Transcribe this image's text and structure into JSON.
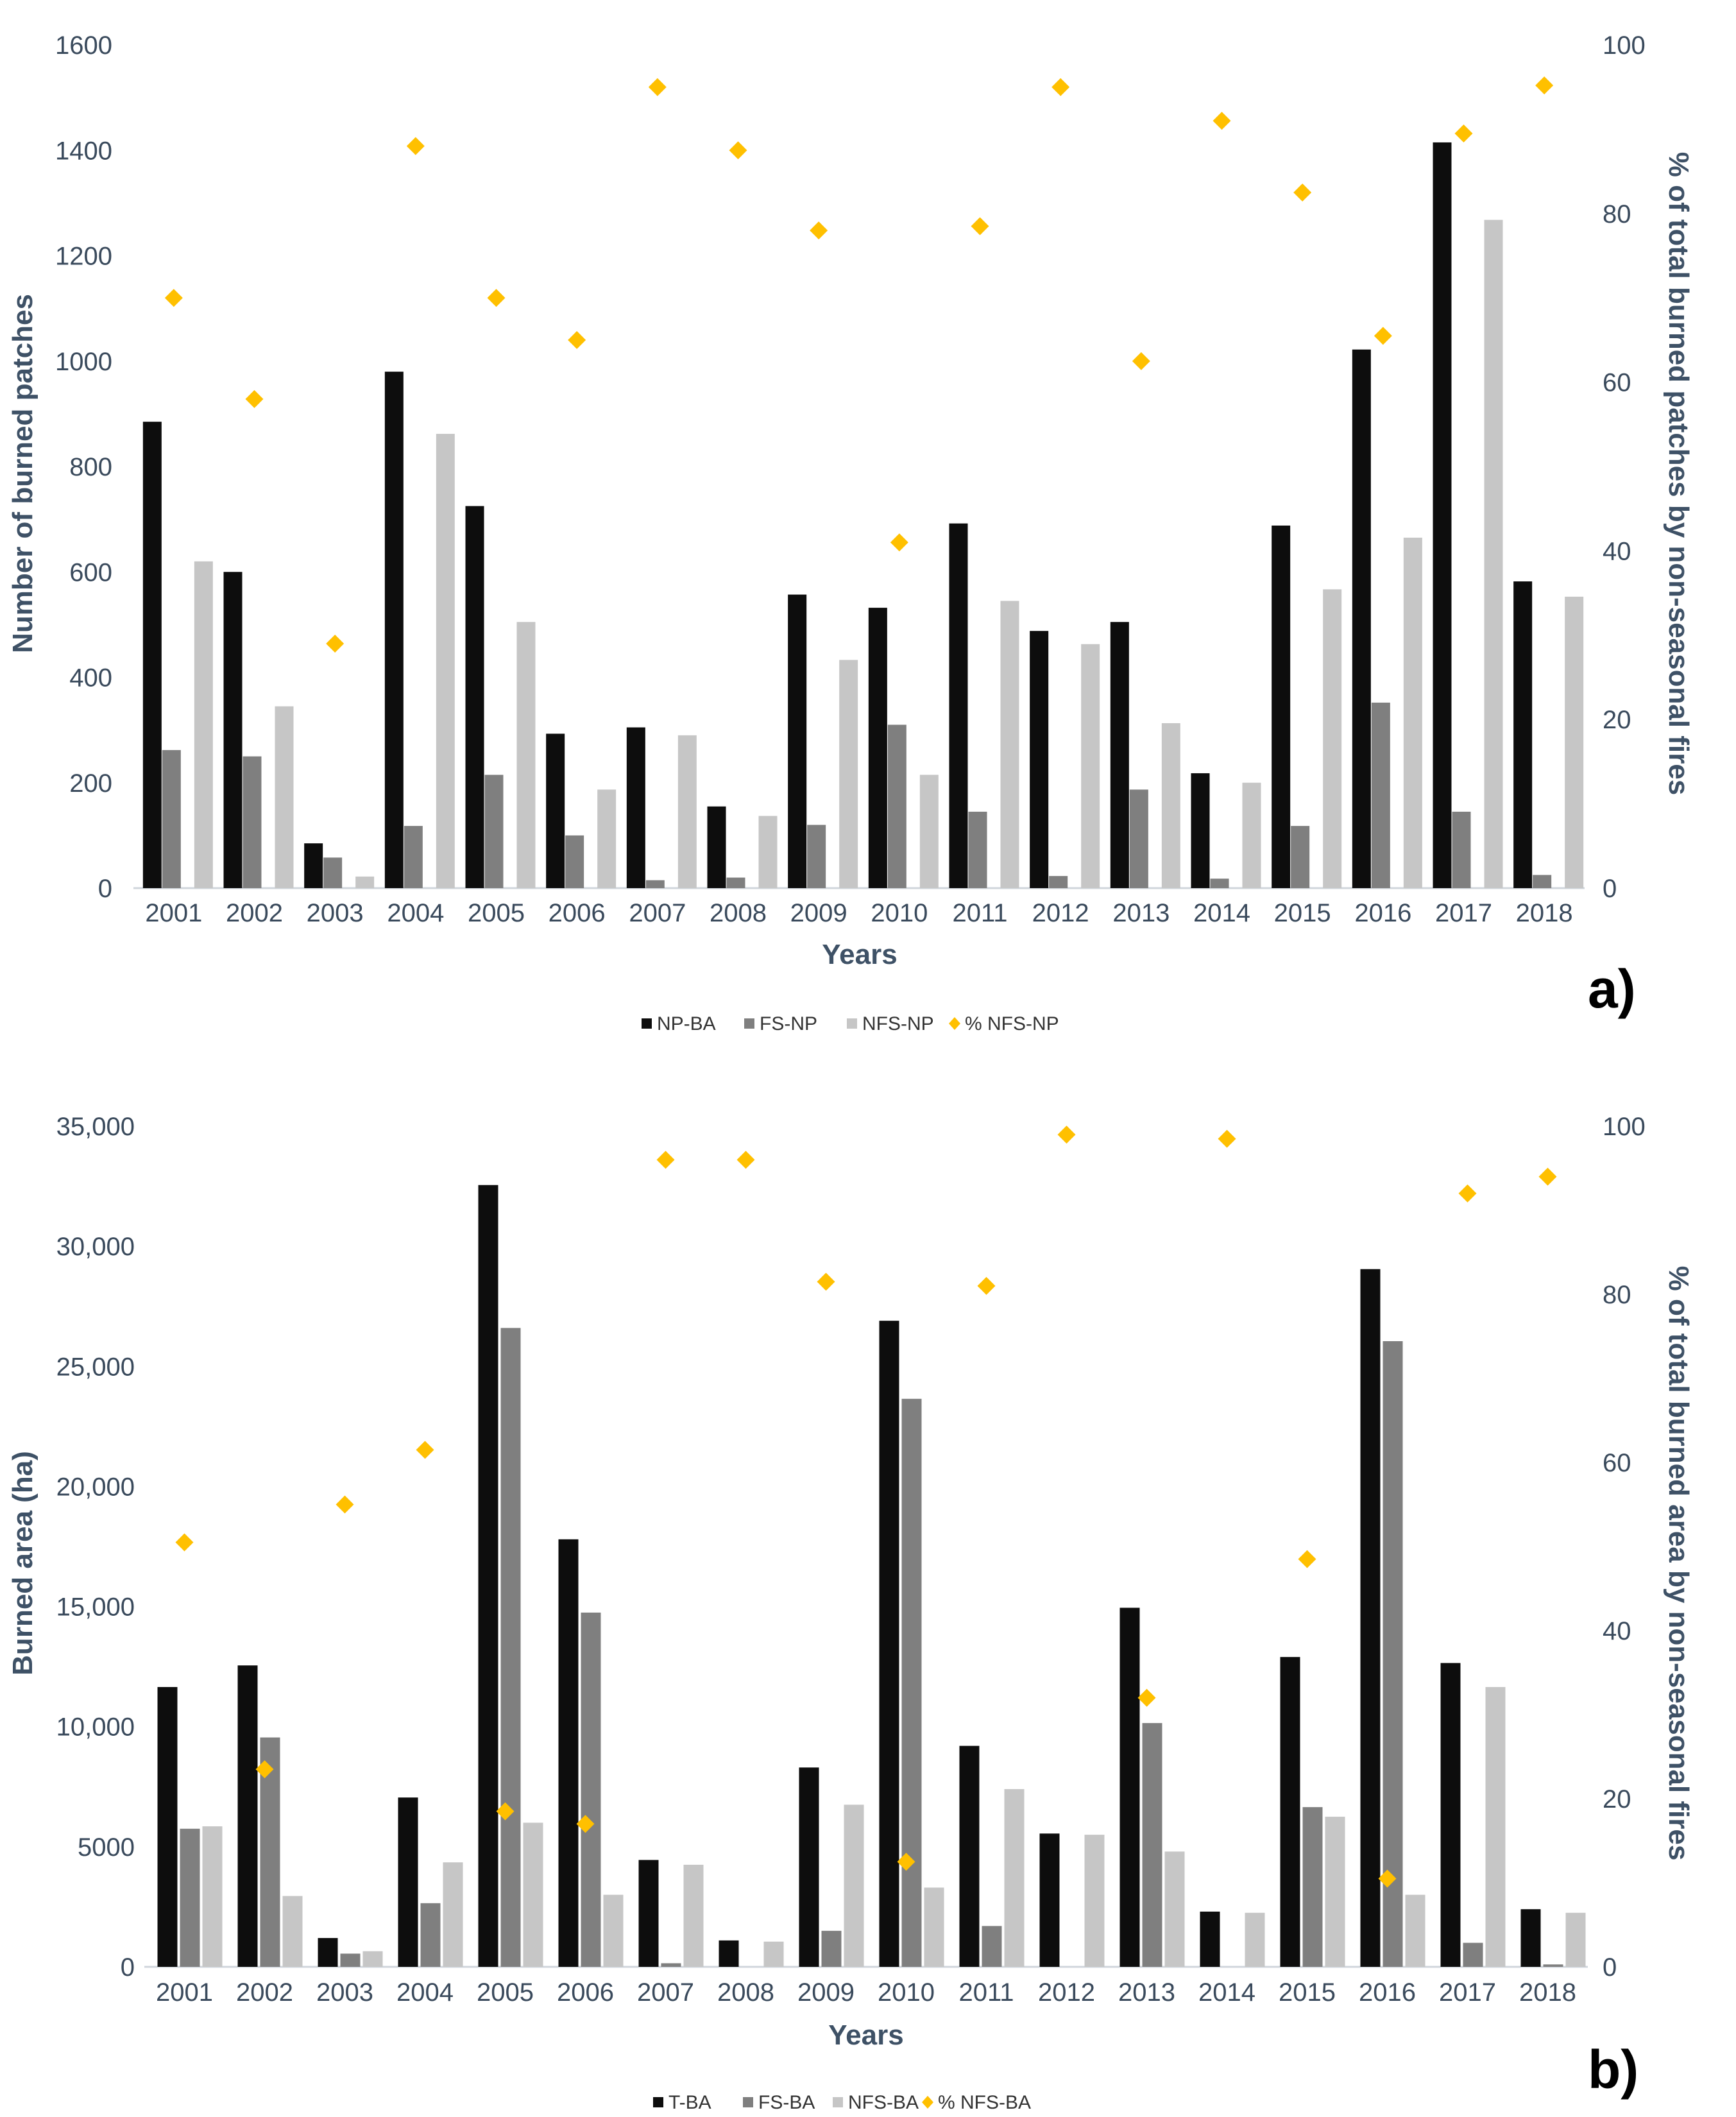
{
  "colors": {
    "black": "#0d0d0d",
    "dark_gray": "#7f7f7f",
    "light_gray": "#c6c6c6",
    "gold": "#ffc000",
    "axis_text": "#3a4a5c"
  },
  "chart_data": [
    {
      "type": "bar",
      "panel_label": "a)",
      "categories": [
        "2001",
        "2002",
        "2003",
        "2004",
        "2005",
        "2006",
        "2007",
        "2008",
        "2009",
        "2010",
        "2011",
        "2012",
        "2013",
        "2014",
        "2015",
        "2016",
        "2017",
        "2018"
      ],
      "series": [
        {
          "name": "NP-BA",
          "color": "#0d0d0d",
          "values": [
            885,
            600,
            85,
            980,
            725,
            293,
            305,
            155,
            557,
            532,
            692,
            488,
            505,
            218,
            688,
            1022,
            1415,
            582
          ]
        },
        {
          "name": "FS-NP",
          "color": "#7f7f7f",
          "values": [
            262,
            250,
            58,
            118,
            215,
            100,
            15,
            20,
            120,
            310,
            145,
            23,
            187,
            18,
            118,
            352,
            145,
            25
          ]
        },
        {
          "name": "NFS-NP",
          "color": "#c6c6c6",
          "values": [
            620,
            345,
            22,
            862,
            505,
            187,
            290,
            137,
            433,
            215,
            545,
            463,
            313,
            200,
            567,
            665,
            1268,
            553
          ]
        }
      ],
      "secondary_series": {
        "name": "% NFS-NP",
        "color": "#ffc000",
        "marker": "diamond",
        "values": [
          70,
          58,
          29,
          88,
          70,
          65,
          95,
          87.5,
          78,
          41,
          78.5,
          95,
          62.5,
          91,
          82.5,
          65.5,
          89.5,
          95.2
        ]
      },
      "xlabel": "Years",
      "ylabel": "Number of burned patches",
      "y2label": "% of total burned patches by non-seasonal fires",
      "ylim": [
        0,
        1600
      ],
      "yticks": [
        0,
        200,
        400,
        600,
        800,
        1000,
        1200,
        1400,
        1600
      ],
      "ytick_labels": [
        "0",
        "200",
        "400",
        "600",
        "800",
        "1000",
        "1200",
        "1400",
        "1600"
      ],
      "y2lim": [
        0,
        100
      ],
      "y2ticks": [
        0,
        20,
        40,
        60,
        80,
        100
      ],
      "legend": [
        "NP-BA",
        "FS-NP",
        "NFS-NP",
        "% NFS-NP"
      ],
      "legend_position": "bottom"
    },
    {
      "type": "bar",
      "panel_label": "b)",
      "categories": [
        "2001",
        "2002",
        "2003",
        "2004",
        "2005",
        "2006",
        "2007",
        "2008",
        "2009",
        "2010",
        "2011",
        "2012",
        "2013",
        "2014",
        "2015",
        "2016",
        "2017",
        "2018"
      ],
      "series": [
        {
          "name": "T-BA",
          "color": "#0d0d0d",
          "values": [
            11650,
            12550,
            1200,
            7050,
            32550,
            17800,
            4450,
            1100,
            8300,
            26900,
            9200,
            5550,
            14950,
            2300,
            12900,
            29050,
            12650,
            2400
          ]
        },
        {
          "name": "FS-BA",
          "color": "#7f7f7f",
          "values": [
            5750,
            9550,
            550,
            2650,
            26600,
            14750,
            150,
            0,
            1500,
            23650,
            1700,
            0,
            10150,
            0,
            6650,
            26050,
            1000,
            100
          ]
        },
        {
          "name": "NFS-BA",
          "color": "#c6c6c6",
          "values": [
            5850,
            2950,
            650,
            4350,
            6000,
            3000,
            4250,
            1050,
            6750,
            3300,
            7400,
            5500,
            4800,
            2250,
            6250,
            3000,
            11650,
            2250
          ]
        }
      ],
      "secondary_series": {
        "name": "% NFS-BA",
        "color": "#ffc000",
        "marker": "diamond",
        "values": [
          50.5,
          23.5,
          55,
          61.5,
          18.5,
          17,
          96,
          96,
          81.5,
          12.5,
          81,
          99,
          32,
          98.5,
          48.5,
          10.5,
          92,
          94
        ]
      },
      "xlabel": "Years",
      "ylabel": "Burned area (ha)",
      "y2label": "% of total burned area by non-seasonal fires",
      "ylim": [
        0,
        35000
      ],
      "yticks": [
        0,
        5000,
        10000,
        15000,
        20000,
        25000,
        30000,
        35000
      ],
      "ytick_labels": [
        "0",
        "5000",
        "10,000",
        "15,000",
        "20,000",
        "25,000",
        "30,000",
        "35,000"
      ],
      "y2lim": [
        0,
        100
      ],
      "y2ticks": [
        0,
        20,
        40,
        60,
        80,
        100
      ],
      "legend": [
        "T-BA",
        "FS-BA",
        "NFS-BA",
        "% NFS-BA"
      ],
      "legend_position": "bottom"
    }
  ]
}
